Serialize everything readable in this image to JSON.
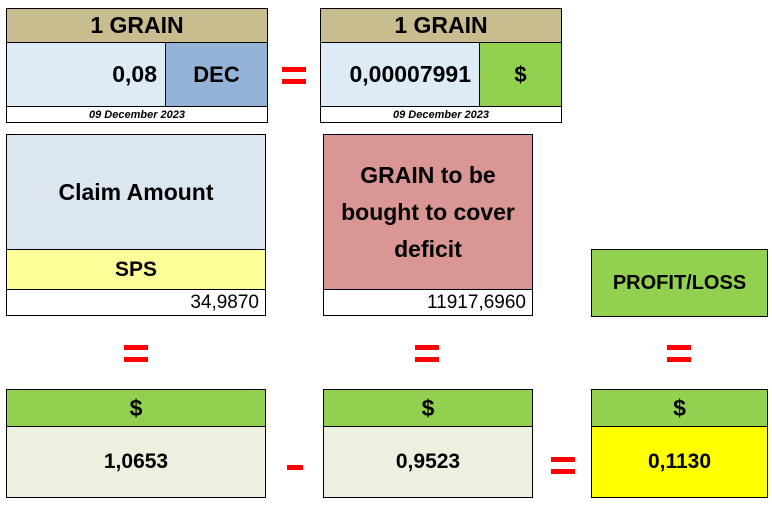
{
  "rate_left": {
    "header": "1 GRAIN",
    "value": "0,08",
    "currency": "DEC",
    "date": "09 December 2023"
  },
  "rate_right": {
    "header": "1 GRAIN",
    "value": "0,00007991",
    "currency": "$",
    "date": "09 December 2023"
  },
  "claim": {
    "title": "Claim Amount",
    "token": "SPS",
    "amount": "34,9870"
  },
  "deficit": {
    "title": "GRAIN to be bought to cover deficit",
    "amount": "11917,6960"
  },
  "profit_loss": {
    "title": "PROFIT/LOSS"
  },
  "results": {
    "claim_usd": {
      "currency": "$",
      "value": "1,0653"
    },
    "deficit_usd": {
      "currency": "$",
      "value": "0,9523"
    },
    "profit_usd": {
      "currency": "$",
      "value": "0,1130"
    }
  },
  "colors": {
    "operator": "#ff0000",
    "header": "#c8bd8f",
    "green": "#92d050",
    "highlight": "#ffff00"
  }
}
